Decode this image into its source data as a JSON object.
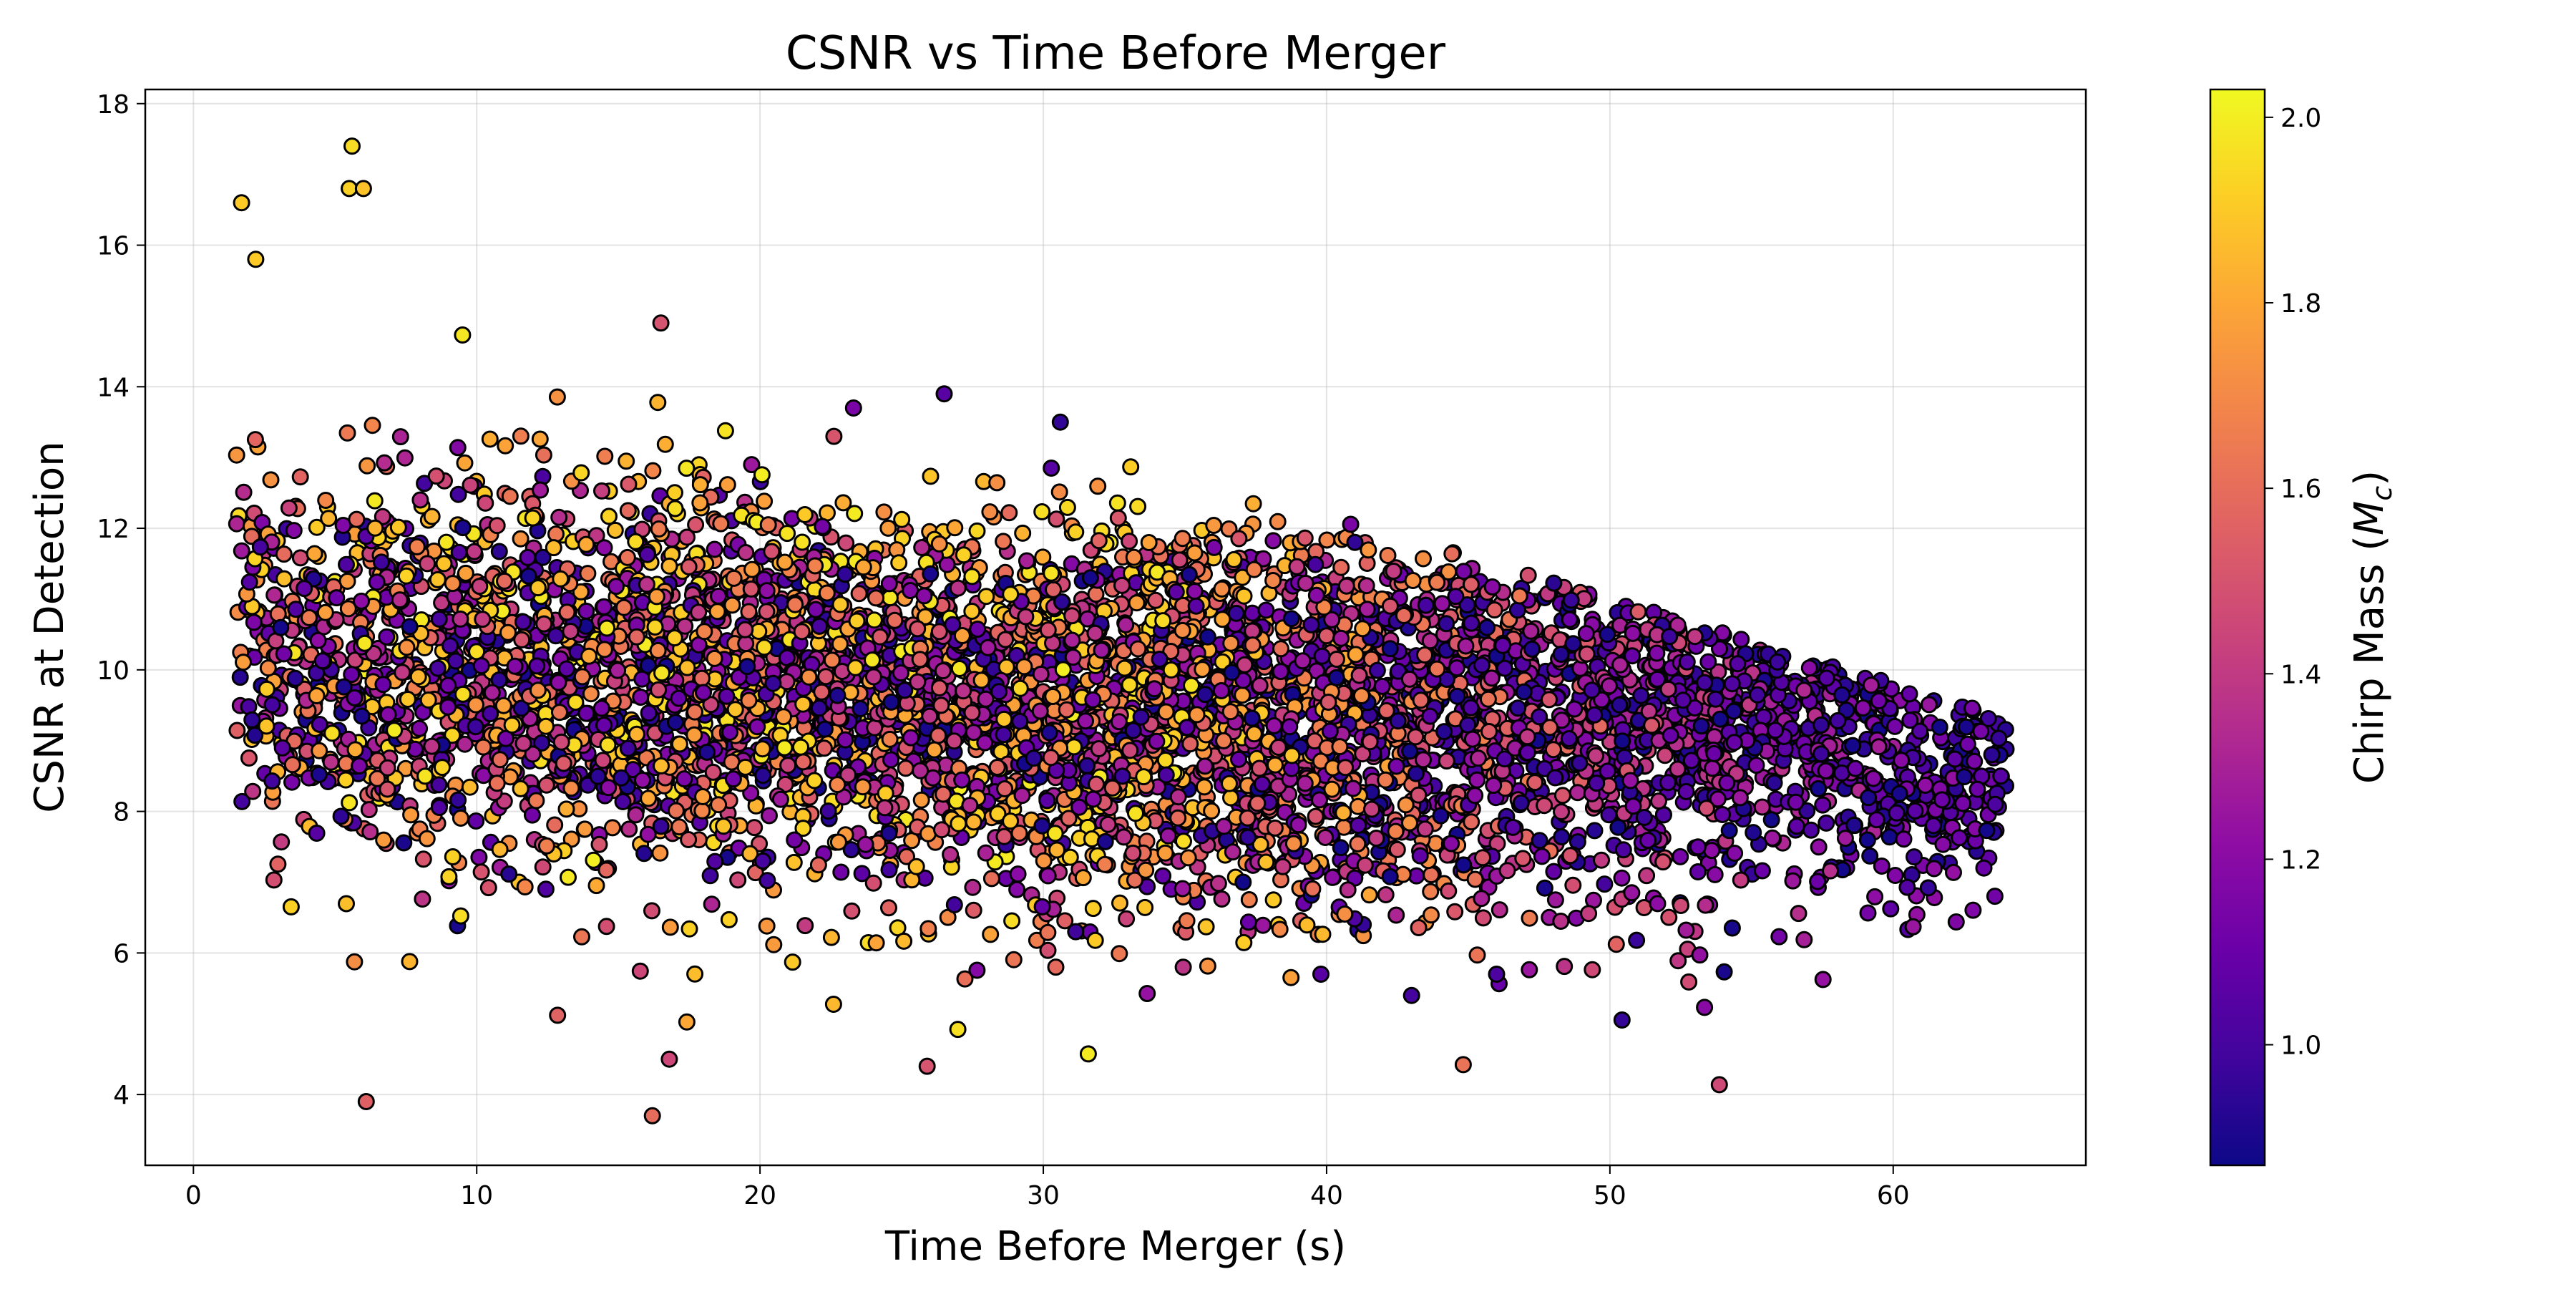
{
  "chart_data": {
    "type": "scatter",
    "title": "CSNR vs Time Before Merger",
    "xlabel": "Time Before Merger (s)",
    "ylabel": "CSNR at Detection",
    "xlim": [
      -1.7,
      66.8
    ],
    "ylim": [
      3.0,
      18.2
    ],
    "xticks": [
      0,
      10,
      20,
      30,
      40,
      50,
      60
    ],
    "yticks": [
      4,
      6,
      8,
      10,
      12,
      14,
      16,
      18
    ],
    "grid": true,
    "colorbar": {
      "label": "Chirp Mass (M_c)",
      "label_main": "Chirp Mass (",
      "label_symbol": "M",
      "label_sub": "c",
      "label_close": ")",
      "colormap": "plasma",
      "range": [
        0.87,
        2.03
      ],
      "ticks": [
        "1.0",
        "1.2",
        "1.4",
        "1.6",
        "1.8",
        "2.0"
      ]
    },
    "marker": {
      "edgecolor": "#000000",
      "approx_count": 6000
    },
    "notable_points": [
      {
        "x": 5.6,
        "y": 17.4,
        "c": 1.95
      },
      {
        "x": 1.7,
        "y": 16.6,
        "c": 1.9
      },
      {
        "x": 5.5,
        "y": 16.8,
        "c": 1.92
      },
      {
        "x": 6.0,
        "y": 16.8,
        "c": 1.88
      },
      {
        "x": 2.2,
        "y": 15.8,
        "c": 1.9
      },
      {
        "x": 16.5,
        "y": 14.9,
        "c": 1.5
      },
      {
        "x": 23.3,
        "y": 13.7,
        "c": 1.15
      },
      {
        "x": 26.5,
        "y": 13.9,
        "c": 1.05
      },
      {
        "x": 30.6,
        "y": 13.5,
        "c": 0.95
      },
      {
        "x": 41.0,
        "y": 11.8,
        "c": 0.95
      },
      {
        "x": 6.1,
        "y": 3.9,
        "c": 1.55
      },
      {
        "x": 16.2,
        "y": 3.7,
        "c": 1.6
      },
      {
        "x": 25.9,
        "y": 4.4,
        "c": 1.5
      },
      {
        "x": 16.8,
        "y": 4.5,
        "c": 1.45
      },
      {
        "x": 43.0,
        "y": 5.4,
        "c": 1.0
      },
      {
        "x": 39.8,
        "y": 5.7,
        "c": 1.05
      },
      {
        "x": 46.0,
        "y": 5.7,
        "c": 1.02
      },
      {
        "x": 63.8,
        "y": 8.5,
        "c": 1.05
      },
      {
        "x": 63.2,
        "y": 7.2,
        "c": 1.1
      },
      {
        "x": 63.6,
        "y": 8.1,
        "c": 1.02
      }
    ]
  }
}
